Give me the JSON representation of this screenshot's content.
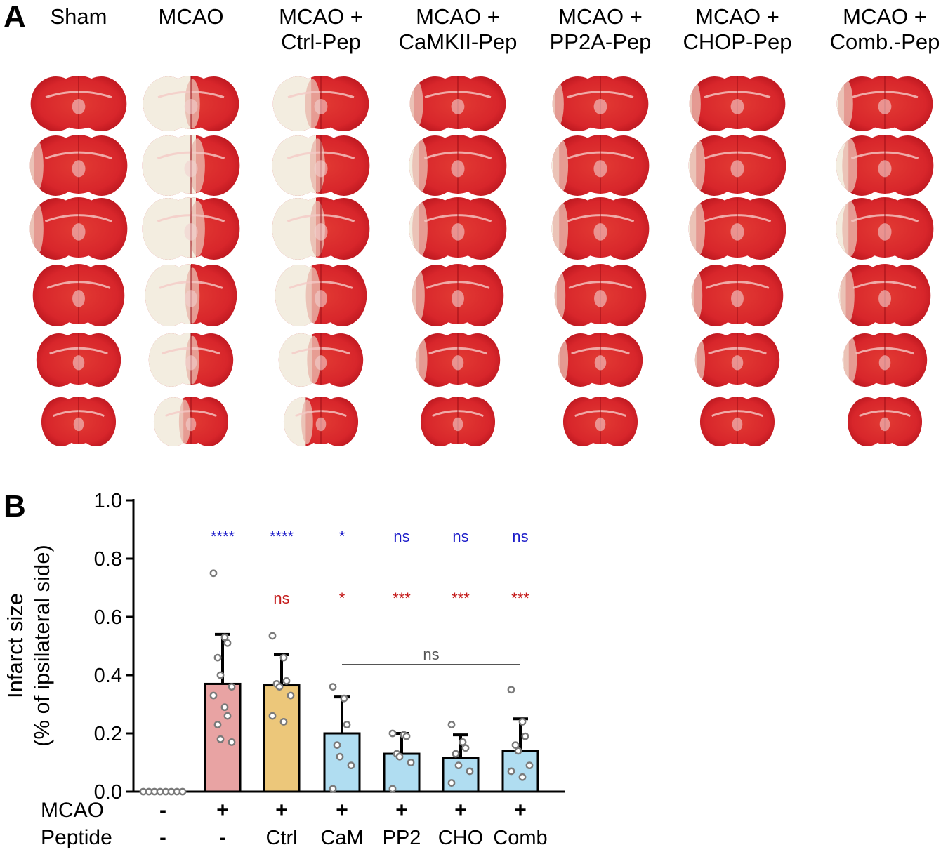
{
  "panel_a": {
    "letter": "A",
    "groups": [
      {
        "line1": "Sham",
        "line2": "",
        "infarct": 0.0
      },
      {
        "line1": "MCAO",
        "line2": "",
        "infarct": 0.5
      },
      {
        "line1": "MCAO +",
        "line2": "Ctrl-Pep",
        "infarct": 0.4
      },
      {
        "line1": "MCAO +",
        "line2": "CaMKII-Pep",
        "infarct": 0.05
      },
      {
        "line1": "MCAO +",
        "line2": "PP2A-Pep",
        "infarct": 0.03
      },
      {
        "line1": "MCAO +",
        "line2": "CHOP-Pep",
        "infarct": 0.03
      },
      {
        "line1": "MCAO +",
        "line2": "Comb.-Pep",
        "infarct": 0.08
      }
    ],
    "sections_per_group": 6
  },
  "chart_data": {
    "type": "bar",
    "panel_letter": "B",
    "ylabel_line1": "Infarct size",
    "ylabel_line2": "(% of ipsilateral side)",
    "ylim": [
      0,
      1.0
    ],
    "yticks": [
      "0.0",
      "0.2",
      "0.4",
      "0.6",
      "0.8",
      "1.0"
    ],
    "row_labels": {
      "mcao": "MCAO",
      "peptide": "Peptide"
    },
    "categories": [
      {
        "mcao": "-",
        "peptide": "-",
        "mean": 0.0,
        "err": 0.0,
        "color": "#c8c8c8",
        "points": [
          0,
          0,
          0,
          0,
          0,
          0,
          0,
          0
        ],
        "sig_blue": "",
        "sig_red": ""
      },
      {
        "mcao": "+",
        "peptide": "-",
        "mean": 0.37,
        "err": 0.17,
        "color": "#e8a3a3",
        "points": [
          0.75,
          0.53,
          0.51,
          0.46,
          0.4,
          0.36,
          0.33,
          0.29,
          0.26,
          0.23,
          0.18,
          0.17
        ],
        "sig_blue": "****",
        "sig_red": ""
      },
      {
        "mcao": "+",
        "peptide": "Ctrl",
        "mean": 0.365,
        "err": 0.105,
        "color": "#ecc77a",
        "points": [
          0.535,
          0.46,
          0.38,
          0.37,
          0.36,
          0.33,
          0.26,
          0.24
        ],
        "sig_blue": "****",
        "sig_red": "ns"
      },
      {
        "mcao": "+",
        "peptide": "CaM",
        "mean": 0.2,
        "err": 0.125,
        "color": "#b0ddf1",
        "points": [
          0.36,
          0.32,
          0.23,
          0.16,
          0.12,
          0.09,
          0.01
        ],
        "sig_blue": "*",
        "sig_red": "*"
      },
      {
        "mcao": "+",
        "peptide": "PP2",
        "mean": 0.13,
        "err": 0.07,
        "color": "#b0ddf1",
        "points": [
          0.2,
          0.195,
          0.19,
          0.13,
          0.12,
          0.1,
          0.01
        ],
        "sig_blue": "ns",
        "sig_red": "***"
      },
      {
        "mcao": "+",
        "peptide": "CHO",
        "mean": 0.115,
        "err": 0.08,
        "color": "#b0ddf1",
        "points": [
          0.23,
          0.17,
          0.15,
          0.13,
          0.09,
          0.07,
          0.03
        ],
        "sig_blue": "ns",
        "sig_red": "***"
      },
      {
        "mcao": "+",
        "peptide": "Comb",
        "mean": 0.14,
        "err": 0.11,
        "color": "#b0ddf1",
        "points": [
          0.35,
          0.24,
          0.19,
          0.16,
          0.14,
          0.09,
          0.07,
          0.05
        ],
        "sig_blue": "ns",
        "sig_red": "***"
      }
    ],
    "comparison": {
      "from": 3,
      "to": 6,
      "label": "ns"
    },
    "sig_colors": {
      "blue": "#1a1ac8",
      "red": "#c41a1a",
      "bracket": "#555555"
    }
  }
}
